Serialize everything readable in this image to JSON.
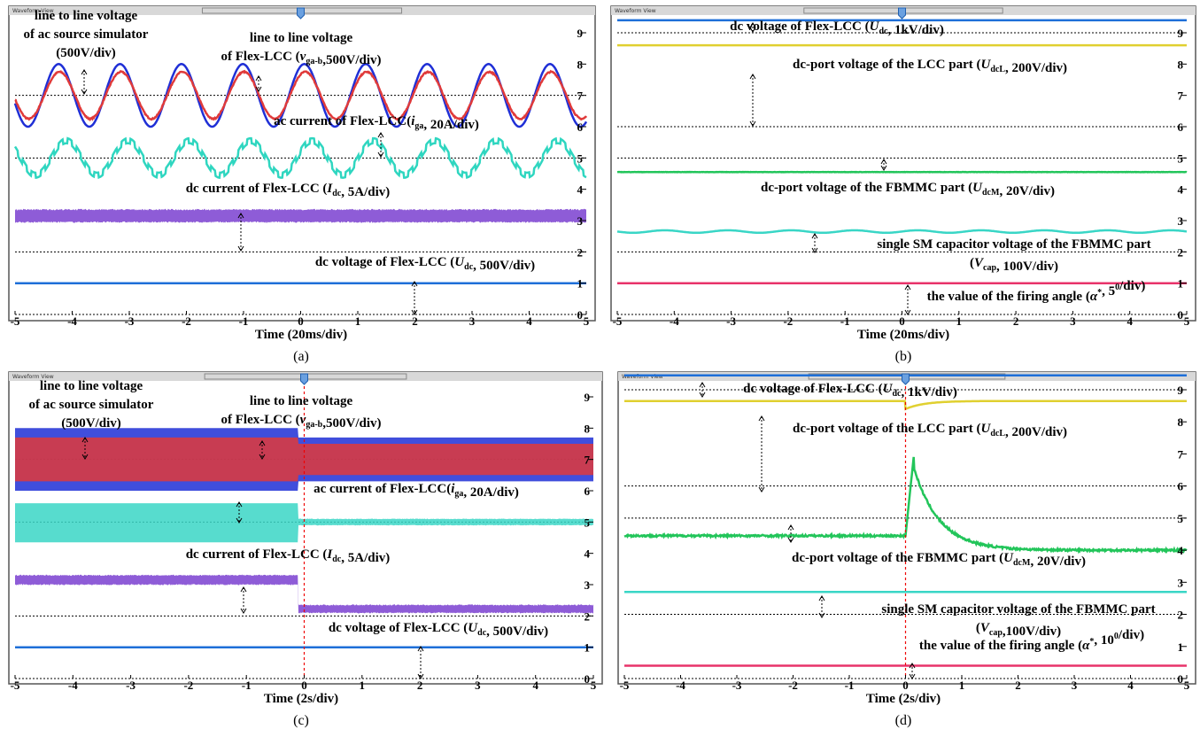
{
  "panels": [
    {
      "header": "Waveform View",
      "xlabel": "Time (20ms/div)",
      "caption": "(a)",
      "xticks": [
        -5,
        -4,
        -3,
        -2,
        -1,
        0,
        1,
        2,
        3,
        4,
        5
      ],
      "yticks": [
        0,
        1,
        2,
        3,
        4,
        5,
        6,
        7,
        8,
        9
      ],
      "annotations": [
        [
          [
            "line to line voltage"
          ],
          [
            "of ac source simulator"
          ],
          [
            "(500V/div)"
          ]
        ],
        [
          [
            "line to line voltage"
          ],
          [
            "of Flex-LCC (",
            {
              "i": "v"
            },
            {
              "sub": "ga-b"
            },
            ",500V/div)"
          ]
        ],
        [
          [
            "ac current of Flex-LCC(",
            {
              "i": "i"
            },
            {
              "sub": "ga"
            },
            ", 20A/div)"
          ]
        ],
        [
          [
            "dc current of Flex-LCC (",
            {
              "i": "I"
            },
            {
              "sub": "dc"
            },
            ", 5A/div)"
          ]
        ],
        [
          [
            "dc voltage of Flex-LCC (",
            {
              "i": "U"
            },
            {
              "sub": "dc"
            },
            ", 500V/div)"
          ]
        ]
      ]
    },
    {
      "header": "Waveform View",
      "xlabel": "Time (20ms/div)",
      "caption": "(b)",
      "xticks": [
        -5,
        -4,
        -3,
        -2,
        -1,
        0,
        1,
        2,
        3,
        4,
        5
      ],
      "yticks": [
        0,
        1,
        2,
        3,
        4,
        5,
        6,
        7,
        8,
        9
      ],
      "annotations": [
        [
          [
            "dc voltage of Flex-LCC (",
            {
              "i": "U"
            },
            {
              "sub": "dc"
            },
            ", 1kV/div)"
          ]
        ],
        [
          [
            "dc-port voltage of the LCC part (",
            {
              "i": "U"
            },
            {
              "sub": "dcL"
            },
            ", 200V/div)"
          ]
        ],
        [
          [
            "dc-port voltage of the FBMMC part (",
            {
              "i": "U"
            },
            {
              "sub": "dcM"
            },
            ", 20V/div)"
          ]
        ],
        [
          [
            "single SM capacitor voltage of the FBMMC part"
          ],
          [
            "(",
            {
              "i": "V"
            },
            {
              "sub": "cap"
            },
            ", 100V/div)"
          ]
        ],
        [
          [
            "the value of the firing angle (",
            {
              "i": "α"
            },
            {
              "sup": "*"
            },
            ", 5",
            {
              "sup": "0"
            },
            "/div)"
          ]
        ]
      ]
    },
    {
      "header": "Waveform View",
      "xlabel": "Time (2s/div)",
      "caption": "(c)",
      "xticks": [
        -5,
        -4,
        -3,
        -2,
        -1,
        0,
        1,
        2,
        3,
        4,
        5
      ],
      "yticks": [
        0,
        1,
        2,
        3,
        4,
        5,
        6,
        7,
        8,
        9
      ],
      "annotations": [
        [
          [
            "line to line voltage"
          ],
          [
            "of ac source simulator"
          ],
          [
            "(500V/div)"
          ]
        ],
        [
          [
            "line to line voltage"
          ],
          [
            "of Flex-LCC (",
            {
              "i": "v"
            },
            {
              "sub": "ga-b"
            },
            ",500V/div)"
          ]
        ],
        [
          [
            "ac current of Flex-LCC(",
            {
              "i": "i"
            },
            {
              "sub": "ga"
            },
            ", 20A/div)"
          ]
        ],
        [
          [
            "dc current of Flex-LCC (",
            {
              "i": "I"
            },
            {
              "sub": "dc"
            },
            ", 5A/div)"
          ]
        ],
        [
          [
            "dc voltage of Flex-LCC (",
            {
              "i": "U"
            },
            {
              "sub": "dc"
            },
            ", 500V/div)"
          ]
        ]
      ]
    },
    {
      "header": "Waveform View",
      "xlabel": "Time (2s/div)",
      "caption": "(d)",
      "xticks": [
        -5,
        -4,
        -3,
        -2,
        -1,
        0,
        1,
        2,
        3,
        4,
        5
      ],
      "yticks": [
        0,
        1,
        2,
        3,
        4,
        5,
        6,
        7,
        8,
        9
      ],
      "annotations": [
        [
          [
            "dc voltage of Flex-LCC (",
            {
              "i": "U"
            },
            {
              "sub": "dc"
            },
            ", 1kV/div)"
          ]
        ],
        [
          [
            "dc-port voltage of the LCC part (",
            {
              "i": "U"
            },
            {
              "sub": "dcL"
            },
            ", 200V/div)"
          ]
        ],
        [
          [
            "dc-port voltage of the FBMMC part (",
            {
              "i": "U"
            },
            {
              "sub": "dcM"
            },
            ", 20V/div)"
          ]
        ],
        [
          [
            "single SM capacitor voltage of the FBMMC part"
          ],
          [
            "(",
            {
              "i": "V"
            },
            {
              "sub": "cap"
            },
            ",100V/div)"
          ]
        ],
        [
          [
            "the value of the firing angle (",
            {
              "i": "α"
            },
            {
              "sup": "*"
            },
            ", 10",
            {
              "sup": "0"
            },
            "/div)"
          ]
        ]
      ]
    }
  ]
}
